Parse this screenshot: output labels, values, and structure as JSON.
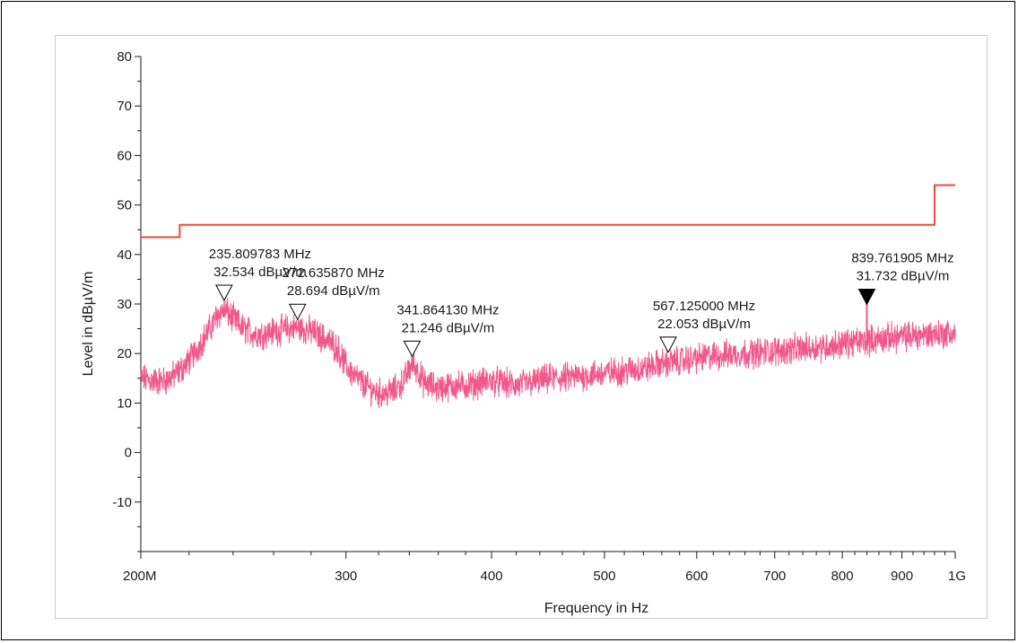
{
  "chart_data": {
    "type": "line",
    "title": "",
    "xlabel": "Frequency in Hz",
    "ylabel": "Level in dBµV/m",
    "x_scale": "log",
    "xlim_mhz": [
      200,
      1000
    ],
    "ylim": [
      -20,
      80
    ],
    "grid": false,
    "legend": "none",
    "x_ticks": [
      {
        "value": 200,
        "label": "200M"
      },
      {
        "value": 300,
        "label": "300"
      },
      {
        "value": 400,
        "label": "400"
      },
      {
        "value": 500,
        "label": "500"
      },
      {
        "value": 600,
        "label": "600"
      },
      {
        "value": 700,
        "label": "700"
      },
      {
        "value": 800,
        "label": "800"
      },
      {
        "value": 900,
        "label": "900"
      },
      {
        "value": 1000,
        "label": "1G"
      }
    ],
    "y_ticks": [
      {
        "value": 80,
        "label": "80"
      },
      {
        "value": 70,
        "label": "70"
      },
      {
        "value": 60,
        "label": "60"
      },
      {
        "value": 50,
        "label": "50"
      },
      {
        "value": 40,
        "label": "40"
      },
      {
        "value": 30,
        "label": "30"
      },
      {
        "value": 20,
        "label": "20"
      },
      {
        "value": 10,
        "label": "10"
      },
      {
        "value": 0,
        "label": "0"
      },
      {
        "value": -10,
        "label": "-10"
      }
    ],
    "series": [
      {
        "kind": "limit",
        "color": "#f0483c",
        "x_mhz": [
          200,
          216,
          216,
          960,
          960,
          1000
        ],
        "y": [
          43.5,
          43.5,
          46,
          46,
          54,
          54
        ]
      },
      {
        "kind": "measurement",
        "color": "#f0588a",
        "noise_amplitude": 2.4,
        "x_mhz": [
          200,
          205,
          210,
          215,
          220,
          225,
          230,
          233,
          236,
          240,
          245,
          250,
          255,
          260,
          265,
          270,
          275,
          280,
          285,
          290,
          295,
          300,
          305,
          310,
          315,
          320,
          325,
          330,
          335,
          338,
          342,
          346,
          350,
          360,
          370,
          380,
          390,
          400,
          410,
          420,
          430,
          440,
          450,
          460,
          480,
          500,
          520,
          540,
          560,
          580,
          600,
          620,
          640,
          660,
          680,
          700,
          720,
          740,
          760,
          780,
          800,
          820,
          840,
          860,
          880,
          900,
          920,
          940,
          960,
          980,
          1000
        ],
        "y": [
          15,
          14.5,
          14.5,
          16,
          18.5,
          22,
          25.5,
          28,
          28.8,
          27,
          25,
          24,
          24,
          24.5,
          24.8,
          25.2,
          25,
          24.5,
          23.5,
          22.5,
          21,
          17.5,
          15.5,
          14,
          12.8,
          12,
          12,
          12.5,
          14,
          15.5,
          18,
          16.5,
          14,
          13,
          13.5,
          13.5,
          14,
          14.5,
          14,
          13.5,
          14,
          14.5,
          15,
          15,
          15.5,
          16,
          16.5,
          17,
          18,
          18.5,
          19,
          19.5,
          19.8,
          20,
          20.2,
          20.5,
          20.8,
          21,
          21.3,
          21.5,
          22,
          22.3,
          22.5,
          23,
          23.2,
          23.4,
          23.6,
          23.8,
          24,
          24,
          24
        ]
      }
    ],
    "markers": [
      {
        "freq_mhz": 235.809783,
        "level": 32.534,
        "label_freq": "235.809783 MHz",
        "label_level": "32.534 dBµV/m",
        "filled": false
      },
      {
        "freq_mhz": 272.63587,
        "level": 28.694,
        "label_freq": "272.635870 MHz",
        "label_level": "28.694 dBµV/m",
        "filled": false
      },
      {
        "freq_mhz": 341.86413,
        "level": 21.246,
        "label_freq": "341.864130 MHz",
        "label_level": "21.246 dBµV/m",
        "filled": false
      },
      {
        "freq_mhz": 567.125,
        "level": 22.053,
        "label_freq": "567.125000 MHz",
        "label_level": "22.053 dBµV/m",
        "filled": false
      },
      {
        "freq_mhz": 839.761905,
        "level": 31.732,
        "label_freq": "839.761905 MHz",
        "label_level": "31.732 dBµV/m",
        "filled": true
      }
    ]
  }
}
